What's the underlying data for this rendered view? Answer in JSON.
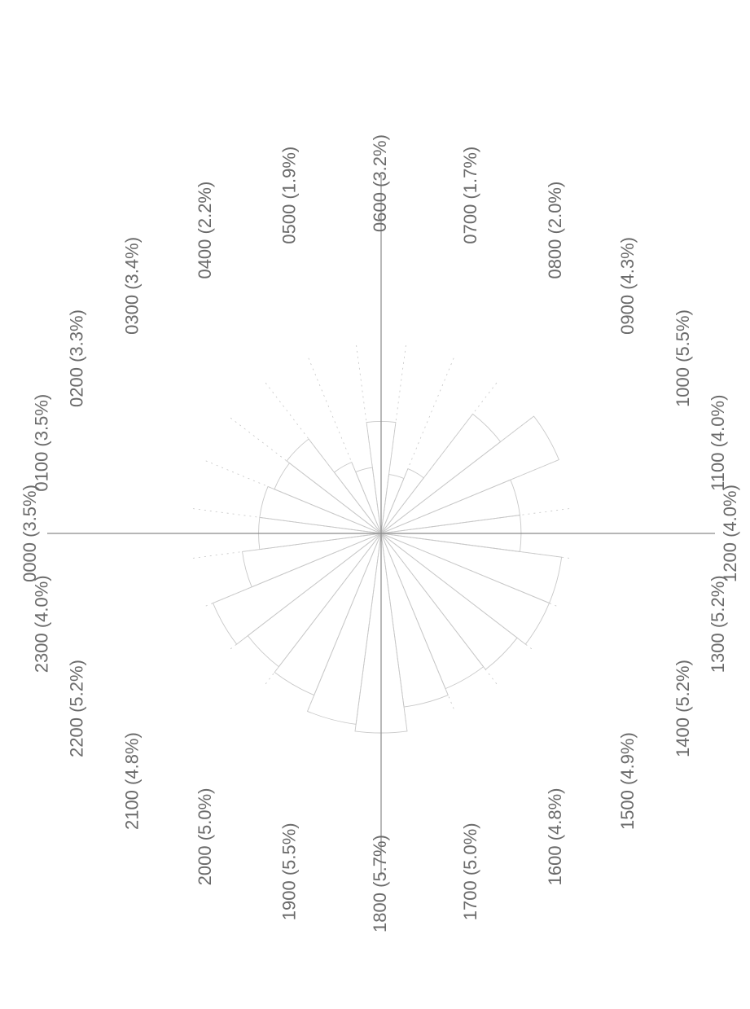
{
  "chart_data": {
    "type": "rose",
    "angular_direction": "clockwise",
    "angular_zero": "top",
    "image_orientation": "rotated 90 degrees counter-clockwise",
    "grid": true,
    "legend": "none",
    "title": "",
    "categories": [
      "0000",
      "0100",
      "0200",
      "0300",
      "0400",
      "0500",
      "0600",
      "0700",
      "0800",
      "0900",
      "1000",
      "1100",
      "1200",
      "1300",
      "1400",
      "1500",
      "1600",
      "1700",
      "1800",
      "1900",
      "2000",
      "2100",
      "2200",
      "2300"
    ],
    "values": [
      3.5,
      3.5,
      3.3,
      3.4,
      2.2,
      1.9,
      3.2,
      1.7,
      2.0,
      4.3,
      5.5,
      4.0,
      4.0,
      5.2,
      5.2,
      4.9,
      4.8,
      5.0,
      5.7,
      5.5,
      5.0,
      4.8,
      5.2,
      4.0
    ],
    "labels": [
      "0000 (3.5%)",
      "0100 (3.5%)",
      "0200 (3.3%)",
      "0300 (3.4%)",
      "0400 (2.2%)",
      "0500 (1.9%)",
      "0600 (3.2%)",
      "0700 (1.7%)",
      "0800 (2.0%)",
      "0900 (4.3%)",
      "1000 (5.5%)",
      "1100 (4.0%)",
      "1200 (4.0%)",
      "1300 (5.2%)",
      "1400 (5.2%)",
      "1500 (4.9%)",
      "1600 (4.8%)",
      "1700 (5.0%)",
      "1800 (5.7%)",
      "1900 (5.5%)",
      "2000 (5.0%)",
      "2100 (4.8%)",
      "2200 (5.2%)",
      "2300 (4.0%)"
    ]
  }
}
